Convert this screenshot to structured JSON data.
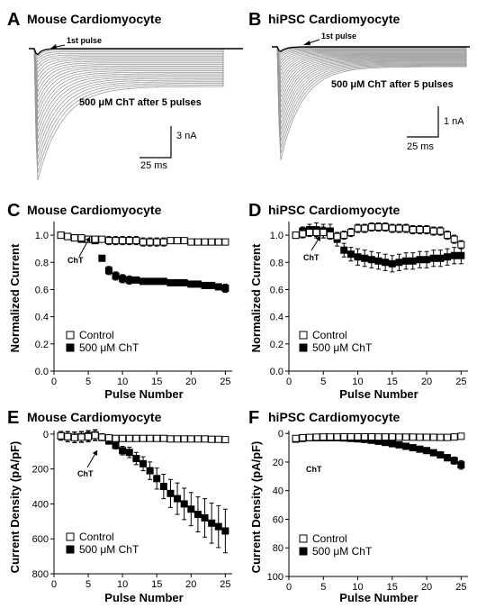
{
  "chart_data": [
    {
      "id": "A",
      "type": "traces",
      "panel_letter": "A",
      "title": "Mouse Cardiomyocyte",
      "annotation": "500 μM ChT after 5 pulses",
      "first_pulse_label": "1st pulse",
      "scale_y_label": "3 nA",
      "scale_x_label": "25 ms",
      "n_traces": 25
    },
    {
      "id": "B",
      "type": "traces",
      "panel_letter": "B",
      "title": "hiPSC Cardiomyocyte",
      "annotation": "500 μM ChT after 5 pulses",
      "first_pulse_label": "1st pulse",
      "scale_y_label": "1 nA",
      "scale_x_label": "25 ms",
      "n_traces": 25
    },
    {
      "id": "C",
      "type": "scatter",
      "panel_letter": "C",
      "title": "Mouse Cardiomyocyte",
      "xlabel": "Pulse Number",
      "ylabel": "Normalized Current",
      "xlim": [
        0,
        26
      ],
      "ylim": [
        0,
        1.1
      ],
      "xticks": [
        0,
        5,
        10,
        15,
        20,
        25
      ],
      "yticks": [
        0.0,
        0.2,
        0.4,
        0.6,
        0.8,
        1.0
      ],
      "ytick_labels": [
        "0.0",
        "0.2",
        "0.4",
        "0.6",
        "0.8",
        "1.0"
      ],
      "yinverted": false,
      "arrow_label": "ChT",
      "arrow_target_pulse": 6,
      "legend_position": "bottom-left",
      "x": [
        1,
        2,
        3,
        4,
        5,
        6,
        7,
        8,
        9,
        10,
        11,
        12,
        13,
        14,
        15,
        16,
        17,
        18,
        19,
        20,
        21,
        22,
        23,
        24,
        25
      ],
      "series": [
        {
          "name": "Control",
          "fill": "#ffffff",
          "values": [
            1.0,
            0.99,
            0.98,
            0.98,
            0.97,
            0.97,
            0.97,
            0.96,
            0.96,
            0.96,
            0.96,
            0.96,
            0.95,
            0.95,
            0.95,
            0.95,
            0.96,
            0.96,
            0.96,
            0.95,
            0.95,
            0.95,
            0.95,
            0.95,
            0.95
          ],
          "errors": [
            0.01,
            0.01,
            0.01,
            0.02,
            0.02,
            0.02,
            0.02,
            0.03,
            0.03,
            0.03,
            0.03,
            0.03,
            0.03,
            0.03,
            0.03,
            0.03,
            0.02,
            0.02,
            0.02,
            0.02,
            0.02,
            0.02,
            0.01,
            0.01,
            0.01
          ]
        },
        {
          "name": "500 μM ChT",
          "fill": "#000000",
          "values": [
            1.0,
            0.99,
            0.98,
            0.97,
            0.97,
            0.96,
            0.83,
            0.74,
            0.7,
            0.68,
            0.67,
            0.67,
            0.66,
            0.66,
            0.66,
            0.66,
            0.65,
            0.65,
            0.65,
            0.64,
            0.64,
            0.63,
            0.63,
            0.62,
            0.61
          ],
          "errors": [
            0.01,
            0.01,
            0.01,
            0.01,
            0.01,
            0.01,
            0.02,
            0.03,
            0.03,
            0.03,
            0.03,
            0.02,
            0.02,
            0.02,
            0.02,
            0.02,
            0.02,
            0.02,
            0.02,
            0.02,
            0.02,
            0.02,
            0.02,
            0.02,
            0.03
          ]
        }
      ]
    },
    {
      "id": "D",
      "type": "scatter",
      "panel_letter": "D",
      "title": "hiPSC Cardiomyocyte",
      "xlabel": "Pulse Number",
      "ylabel": "Normalized Current",
      "xlim": [
        0,
        26
      ],
      "ylim": [
        0,
        1.1
      ],
      "xticks": [
        0,
        5,
        10,
        15,
        20,
        25
      ],
      "yticks": [
        0.0,
        0.2,
        0.4,
        0.6,
        0.8,
        1.0
      ],
      "ytick_labels": [
        "0.0",
        "0.2",
        "0.4",
        "0.6",
        "0.8",
        "1.0"
      ],
      "yinverted": false,
      "arrow_label": "ChT",
      "arrow_target_pulse": 6,
      "legend_position": "bottom-left",
      "x": [
        1,
        2,
        3,
        4,
        5,
        6,
        7,
        8,
        9,
        10,
        11,
        12,
        13,
        14,
        15,
        16,
        17,
        18,
        19,
        20,
        21,
        22,
        23,
        24,
        25
      ],
      "series": [
        {
          "name": "Control",
          "fill": "#ffffff",
          "values": [
            1.0,
            1.01,
            1.02,
            1.02,
            1.02,
            1.0,
            0.99,
            1.0,
            1.02,
            1.05,
            1.05,
            1.06,
            1.06,
            1.06,
            1.05,
            1.05,
            1.05,
            1.04,
            1.04,
            1.04,
            1.03,
            1.03,
            1.0,
            0.97,
            0.93
          ],
          "errors": [
            0.02,
            0.03,
            0.03,
            0.04,
            0.04,
            0.03,
            0.03,
            0.03,
            0.03,
            0.03,
            0.03,
            0.03,
            0.03,
            0.03,
            0.03,
            0.03,
            0.03,
            0.03,
            0.03,
            0.03,
            0.03,
            0.03,
            0.03,
            0.03,
            0.03
          ]
        },
        {
          "name": "500 μM ChT",
          "fill": "#000000",
          "values": [
            1.0,
            1.03,
            1.04,
            1.04,
            1.03,
            1.03,
            0.97,
            0.89,
            0.86,
            0.84,
            0.83,
            0.82,
            0.81,
            0.8,
            0.79,
            0.8,
            0.81,
            0.81,
            0.82,
            0.82,
            0.83,
            0.83,
            0.84,
            0.85,
            0.85
          ],
          "errors": [
            0.02,
            0.03,
            0.04,
            0.05,
            0.05,
            0.05,
            0.05,
            0.05,
            0.05,
            0.06,
            0.06,
            0.06,
            0.06,
            0.06,
            0.06,
            0.06,
            0.06,
            0.06,
            0.06,
            0.06,
            0.06,
            0.06,
            0.06,
            0.06,
            0.06
          ]
        }
      ]
    },
    {
      "id": "E",
      "type": "scatter",
      "panel_letter": "E",
      "title": "Mouse Cardiomyocyte",
      "xlabel": "Pulse Number",
      "ylabel": "Current Density (pA/pF)",
      "xlim": [
        0,
        26
      ],
      "ylim": [
        800,
        -20
      ],
      "xticks": [
        0,
        5,
        10,
        15,
        20,
        25
      ],
      "yticks": [
        0,
        200,
        400,
        600,
        800
      ],
      "ytick_labels": [
        "0",
        "200",
        "400",
        "600",
        "800"
      ],
      "yinverted": true,
      "arrow_label": "ChT",
      "arrow_target_pulse": 6,
      "legend_position": "bottom-left",
      "x": [
        1,
        2,
        3,
        4,
        5,
        6,
        7,
        8,
        9,
        10,
        11,
        12,
        13,
        14,
        15,
        16,
        17,
        18,
        19,
        20,
        21,
        22,
        23,
        24,
        25
      ],
      "series": [
        {
          "name": "Control",
          "fill": "#ffffff",
          "values": [
            10,
            15,
            20,
            18,
            15,
            8,
            18,
            22,
            25,
            25,
            25,
            25,
            25,
            25,
            25,
            25,
            28,
            28,
            28,
            28,
            28,
            28,
            30,
            30,
            32
          ],
          "errors": [
            25,
            28,
            30,
            30,
            30,
            30,
            20,
            15,
            12,
            10,
            10,
            10,
            10,
            10,
            10,
            10,
            10,
            10,
            10,
            10,
            10,
            10,
            10,
            10,
            10
          ]
        },
        {
          "name": "500 μM ChT",
          "fill": "#000000",
          "values": [
            10,
            15,
            18,
            15,
            10,
            5,
            20,
            40,
            65,
            95,
            105,
            140,
            170,
            210,
            255,
            300,
            340,
            370,
            400,
            430,
            460,
            480,
            510,
            530,
            555
          ],
          "errors": [
            25,
            30,
            30,
            30,
            30,
            30,
            15,
            15,
            20,
            25,
            30,
            35,
            40,
            50,
            60,
            70,
            80,
            90,
            90,
            95,
            100,
            110,
            115,
            120,
            125
          ]
        }
      ]
    },
    {
      "id": "F",
      "type": "scatter",
      "panel_letter": "F",
      "title": "hiPSC Cardiomyocyte",
      "xlabel": "Pulse Number",
      "ylabel": "Current Density (pA/pF)",
      "xlim": [
        0,
        26
      ],
      "ylim": [
        100,
        -2
      ],
      "xticks": [
        0,
        5,
        10,
        15,
        20,
        25
      ],
      "yticks": [
        0,
        20,
        40,
        60,
        80,
        100
      ],
      "ytick_labels": [
        "0",
        "20",
        "40",
        "60",
        "80",
        "100"
      ],
      "yinverted": true,
      "arrow_label": "ChT",
      "arrow_target_pulse": 6,
      "legend_position": "bottom-left",
      "x": [
        1,
        2,
        3,
        4,
        5,
        6,
        7,
        8,
        9,
        10,
        11,
        12,
        13,
        14,
        15,
        16,
        17,
        18,
        19,
        20,
        21,
        22,
        23,
        24,
        25
      ],
      "series": [
        {
          "name": "Control",
          "fill": "#ffffff",
          "values": [
            3.5,
            3.0,
            2.8,
            2.6,
            2.5,
            2.5,
            2.5,
            2.4,
            2.4,
            2.4,
            2.4,
            2.4,
            2.5,
            2.5,
            2.5,
            2.6,
            2.6,
            2.6,
            2.7,
            2.7,
            2.7,
            2.8,
            2.8,
            2.5,
            2.0
          ],
          "errors": [
            1.2,
            1.0,
            1.0,
            1.0,
            1.0,
            1.0,
            1.0,
            1.0,
            1.0,
            1.0,
            1.0,
            1.0,
            1.0,
            1.0,
            1.0,
            1.0,
            1.0,
            1.0,
            1.0,
            1.0,
            1.0,
            1.0,
            1.0,
            1.0,
            1.0
          ]
        },
        {
          "name": "500 μM ChT",
          "fill": "#000000",
          "values": [
            4.0,
            3.5,
            3.0,
            3.0,
            3.0,
            3.0,
            3.0,
            3.2,
            3.5,
            3.8,
            4.2,
            4.8,
            5.5,
            6.3,
            7.2,
            8.0,
            9.0,
            10.0,
            11.0,
            12.0,
            13.5,
            15.0,
            17.0,
            19.0,
            22.0
          ],
          "errors": [
            1.0,
            1.0,
            1.0,
            1.0,
            1.0,
            1.0,
            1.0,
            1.0,
            1.0,
            1.0,
            1.0,
            1.0,
            1.0,
            1.0,
            1.2,
            1.2,
            1.3,
            1.4,
            1.5,
            1.6,
            1.8,
            2.0,
            2.2,
            2.5,
            3.0
          ]
        }
      ]
    }
  ]
}
